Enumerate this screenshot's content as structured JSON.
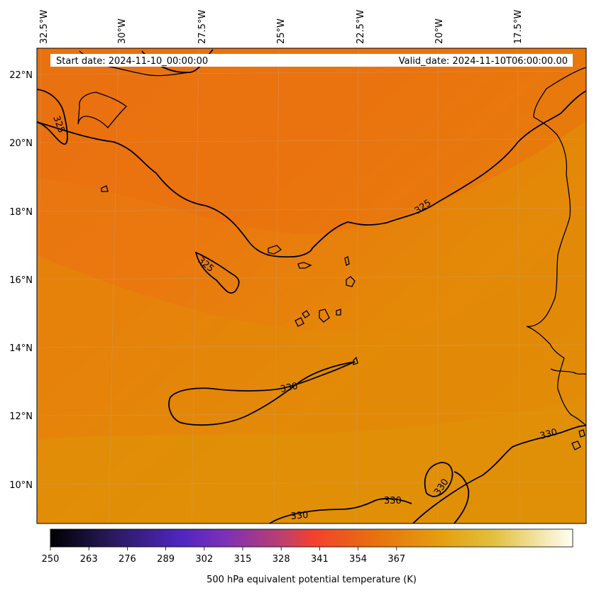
{
  "header": {
    "start_label": "Start date: 2024-11-10_00:00:00",
    "valid_label": "Valid_date: 2024-11-10T06:00:00.00"
  },
  "lon_labels": [
    "32.5°W",
    "30°W",
    "27.5°W",
    "25°W",
    "22.5°W",
    "20°W",
    "17.5°W"
  ],
  "lat_labels": [
    "22°N",
    "20°N",
    "18°N",
    "16°N",
    "14°N",
    "12°N",
    "10°N"
  ],
  "contour_labels": {
    "c325_a": "325",
    "c325_b": "325",
    "c325_c": "325",
    "c330_a": "330",
    "c330_b": "330",
    "c330_c": "330",
    "c330_d": "330",
    "c330_e": "330"
  },
  "colorbar": {
    "ticks": [
      "250",
      "263",
      "276",
      "289",
      "302",
      "315",
      "328",
      "341",
      "354",
      "367"
    ],
    "label": "500 hPa equivalent potential temperature (K)",
    "colors": [
      "#000000",
      "#2a1a5e",
      "#5a28c8",
      "#9b3aa8",
      "#e0504a",
      "#f04030",
      "#e88a10",
      "#e4b010",
      "#e8d870",
      "#fffff0"
    ]
  }
}
